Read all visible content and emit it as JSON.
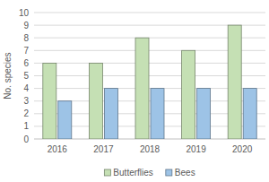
{
  "chart_data": {
    "type": "bar",
    "ylabel": "No. species",
    "categories": [
      "2016",
      "2017",
      "2018",
      "2019",
      "2020"
    ],
    "series": [
      {
        "name": "Butterflies",
        "color": "#c5e0b4",
        "values": [
          6,
          6,
          8,
          7,
          9
        ]
      },
      {
        "name": "Bees",
        "color": "#9dc3e6",
        "values": [
          3,
          4,
          4,
          4,
          4
        ]
      }
    ],
    "ylim": [
      0,
      10
    ],
    "yticks": [
      0,
      1,
      2,
      3,
      4,
      5,
      6,
      7,
      8,
      9,
      10
    ],
    "grid": true,
    "legend": "bottom"
  }
}
